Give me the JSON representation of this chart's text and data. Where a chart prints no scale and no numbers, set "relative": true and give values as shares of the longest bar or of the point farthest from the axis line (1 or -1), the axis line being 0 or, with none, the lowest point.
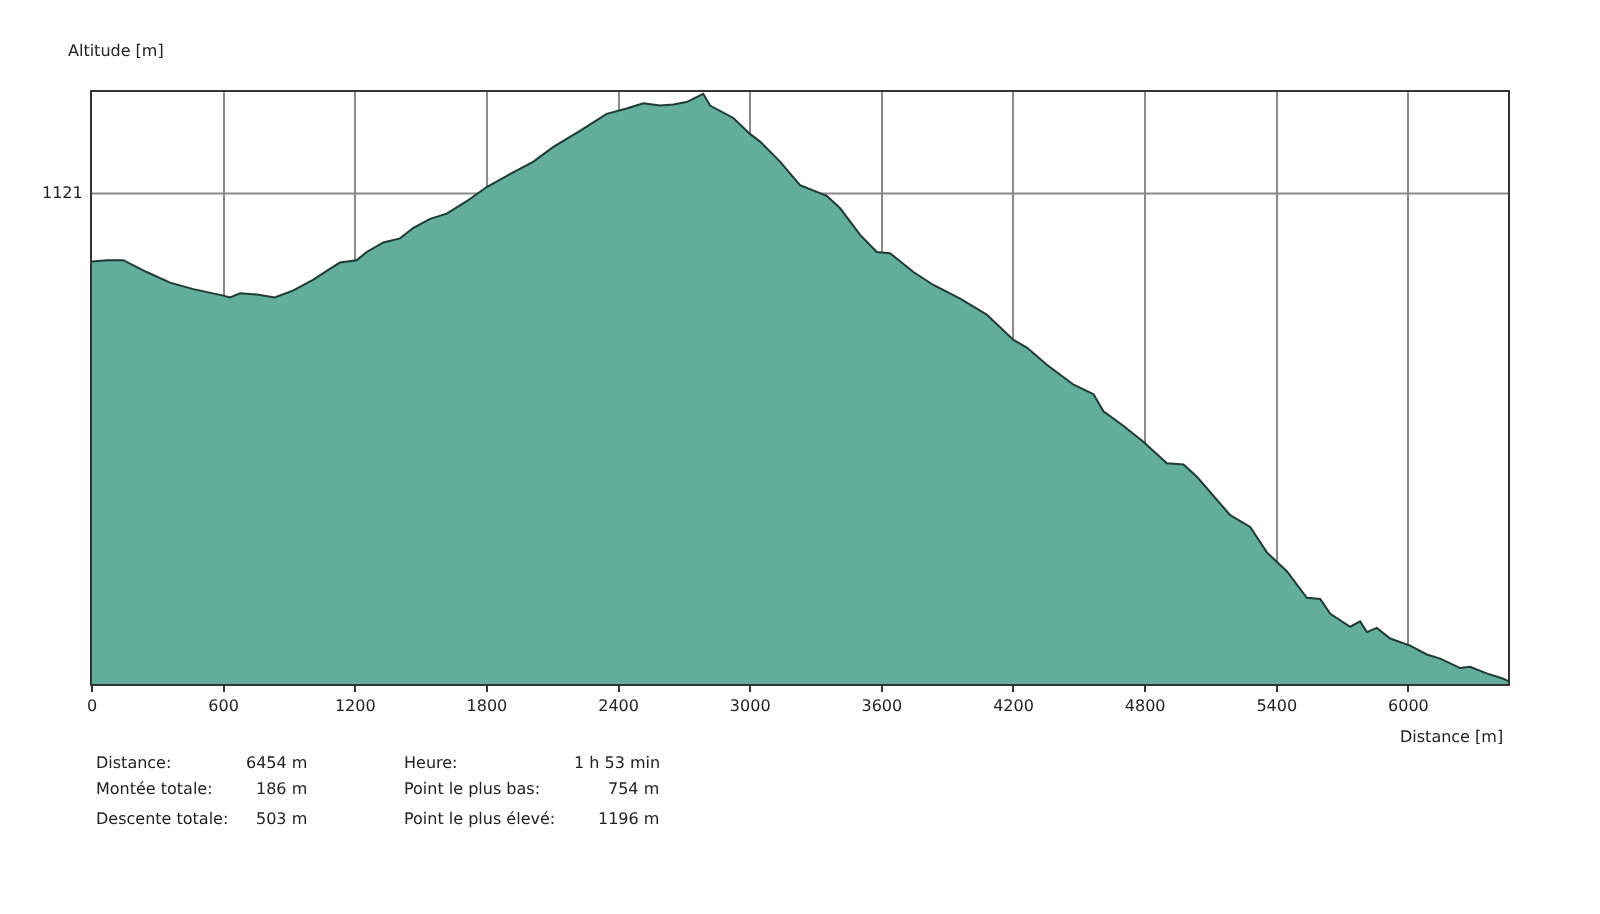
{
  "chart_data": {
    "type": "area",
    "relative": true,
    "xlabel": "Distance [m]",
    "ylabel": "Altitude [m]",
    "x": [
      0,
      67,
      143,
      249,
      356,
      462,
      599,
      629,
      675,
      751,
      833,
      918,
      1009,
      1070,
      1130,
      1206,
      1252,
      1328,
      1404,
      1465,
      1541,
      1617,
      1708,
      1799,
      1920,
      2012,
      2103,
      2224,
      2346,
      2437,
      2513,
      2589,
      2650,
      2710,
      2786,
      2817,
      2923,
      2999,
      3045,
      3136,
      3227,
      3349,
      3410,
      3501,
      3577,
      3637,
      3744,
      3835,
      3957,
      4078,
      4200,
      4261,
      4352,
      4474,
      4565,
      4610,
      4702,
      4793,
      4899,
      4975,
      5036,
      5188,
      5279,
      5355,
      5446,
      5537,
      5598,
      5644,
      5735,
      5780,
      5811,
      5856,
      5917,
      6008,
      6084,
      6145,
      6236,
      6281,
      6357,
      6433,
      6454
    ],
    "series": [
      {
        "color": "#62ae9a",
        "values": [
          0.716,
          0.718,
          0.718,
          0.698,
          0.68,
          0.669,
          0.658,
          0.655,
          0.662,
          0.66,
          0.655,
          0.667,
          0.685,
          0.7,
          0.714,
          0.718,
          0.732,
          0.748,
          0.755,
          0.773,
          0.788,
          0.797,
          0.818,
          0.842,
          0.867,
          0.885,
          0.91,
          0.937,
          0.966,
          0.975,
          0.984,
          0.98,
          0.982,
          0.986,
          1,
          0.98,
          0.959,
          0.932,
          0.919,
          0.885,
          0.845,
          0.827,
          0.806,
          0.761,
          0.732,
          0.73,
          0.698,
          0.676,
          0.653,
          0.626,
          0.583,
          0.57,
          0.541,
          0.507,
          0.491,
          0.462,
          0.437,
          0.41,
          0.374,
          0.372,
          0.351,
          0.286,
          0.266,
          0.223,
          0.191,
          0.146,
          0.144,
          0.119,
          0.097,
          0.106,
          0.088,
          0.095,
          0.077,
          0.065,
          0.05,
          0.043,
          0.027,
          0.029,
          0.018,
          0.009,
          0.005
        ]
      }
    ],
    "xlim": [
      0,
      6454
    ],
    "xticks": [
      0,
      600,
      1200,
      1800,
      2400,
      3000,
      3600,
      4200,
      4800,
      5400,
      6000
    ],
    "grid": "x",
    "ref_lines": [
      {
        "axis": "y",
        "value": 0.831,
        "color": "#8a8a8a"
      }
    ],
    "annotations": [
      "1121",
      "Distance:",
      "6454 m",
      "Heure:",
      "1 h 53 min",
      "Montée totale:",
      "186 m",
      "Point le plus bas:",
      "754 m",
      "Descente totale:",
      "503 m",
      "Point le plus élevé:",
      "1196 m"
    ]
  }
}
